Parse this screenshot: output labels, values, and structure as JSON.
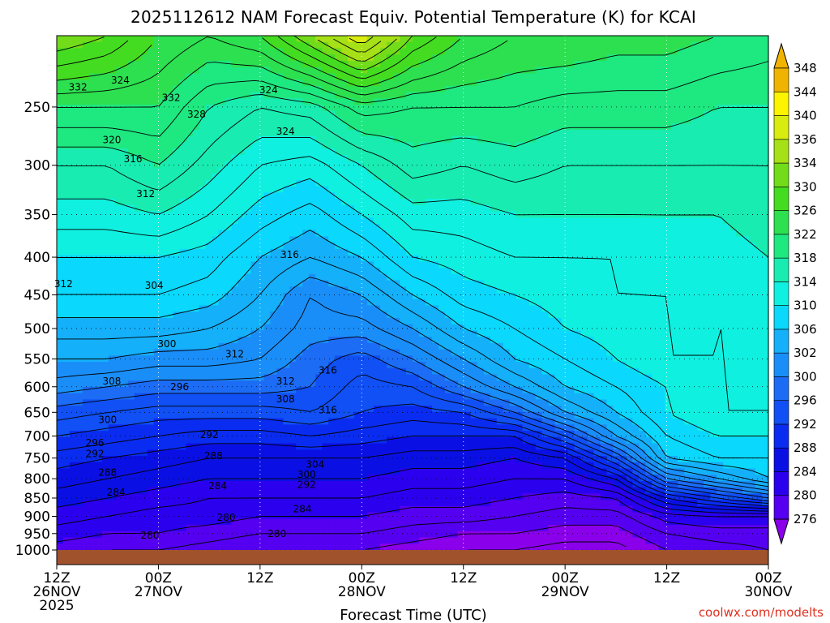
{
  "chart_data": {
    "type": "heatmap",
    "title": "2025112612 NAM Forecast Equiv. Potential Temperature (K) for KCAI",
    "xlabel": "Forecast Time (UTC)",
    "ylabel": "",
    "credit": "coolwx.com/modelts",
    "y_scale": "log",
    "y_inverted": true,
    "ylim": [
      1000,
      200
    ],
    "xlim_hours": [
      0,
      84
    ],
    "y_ticks": [
      250,
      300,
      350,
      400,
      450,
      500,
      550,
      600,
      650,
      700,
      750,
      800,
      850,
      900,
      950,
      1000
    ],
    "y_tick_labels": [
      "250",
      "300",
      "350",
      "400",
      "450",
      "500",
      "550",
      "600",
      "650",
      "700",
      "750",
      "800",
      "850",
      "900",
      "950",
      "1000"
    ],
    "x_ticks": [
      {
        "hour": 0,
        "line1": "12Z",
        "line2": "26NOV",
        "line3": "2025"
      },
      {
        "hour": 12,
        "line1": "00Z",
        "line2": "27NOV",
        "line3": ""
      },
      {
        "hour": 24,
        "line1": "12Z",
        "line2": "",
        "line3": ""
      },
      {
        "hour": 36,
        "line1": "00Z",
        "line2": "28NOV",
        "line3": ""
      },
      {
        "hour": 48,
        "line1": "12Z",
        "line2": "",
        "line3": ""
      },
      {
        "hour": 60,
        "line1": "00Z",
        "line2": "29NOV",
        "line3": ""
      },
      {
        "hour": 72,
        "line1": "12Z",
        "line2": "",
        "line3": ""
      },
      {
        "hour": 84,
        "line1": "00Z",
        "line2": "30NOV",
        "line3": ""
      }
    ],
    "colorbar": {
      "levels": [
        276,
        280,
        284,
        288,
        292,
        296,
        300,
        302,
        306,
        310,
        314,
        318,
        322,
        326,
        330,
        334,
        336,
        340,
        344,
        348
      ],
      "labels": [
        "276",
        "280",
        "284",
        "288",
        "292",
        "296",
        "300",
        "302",
        "306",
        "310",
        "314",
        "318",
        "322",
        "326",
        "330",
        "334",
        "336",
        "340",
        "344",
        "348"
      ],
      "colors": [
        "#8a00ea",
        "#5500f0",
        "#2a00ee",
        "#0a10e4",
        "#0a2cf0",
        "#1050f4",
        "#1c6cf6",
        "#1a8ef8",
        "#14b0fa",
        "#0ad8fc",
        "#10f0e0",
        "#18ecb0",
        "#1ee880",
        "#2ce050",
        "#44dc20",
        "#72dc1a",
        "#a6e016",
        "#d8ec10",
        "#fcf400",
        "#f0b400"
      ]
    },
    "grid": true,
    "pressure_levels_sampled": [
      1000,
      950,
      900,
      850,
      800,
      750,
      700,
      650,
      600,
      550,
      500,
      450,
      400,
      350,
      300,
      250,
      200
    ],
    "forecast_hours_sampled": [
      0,
      6,
      12,
      18,
      24,
      30,
      36,
      42,
      48,
      54,
      60,
      66,
      72,
      78,
      84
    ],
    "theta_e_K": [
      [
        283,
        282,
        282,
        281,
        280,
        280,
        280,
        279,
        278,
        278,
        277,
        277,
        280,
        281,
        282
      ],
      [
        285,
        284,
        284,
        283,
        282,
        282,
        282,
        281,
        280,
        280,
        279,
        279,
        282,
        283,
        283
      ],
      [
        287,
        286,
        285,
        285,
        284,
        284,
        284,
        283,
        283,
        282,
        281,
        281,
        285,
        286,
        286
      ],
      [
        289,
        288,
        287,
        286,
        286,
        286,
        286,
        285,
        285,
        284,
        283,
        284,
        292,
        296,
        300
      ],
      [
        291,
        290,
        289,
        288,
        288,
        288,
        288,
        287,
        287,
        286,
        286,
        290,
        302,
        306,
        310
      ],
      [
        293,
        292,
        291,
        290,
        290,
        290,
        290,
        289,
        289,
        288,
        290,
        298,
        310,
        312,
        312
      ],
      [
        296,
        295,
        294,
        293,
        293,
        294,
        293,
        292,
        292,
        292,
        298,
        306,
        312,
        314,
        314
      ],
      [
        299,
        298,
        297,
        297,
        297,
        298,
        296,
        295,
        296,
        300,
        306,
        310,
        314,
        316,
        316
      ],
      [
        303,
        302,
        301,
        301,
        301,
        300,
        297,
        298,
        302,
        306,
        310,
        312,
        314,
        316,
        316
      ],
      [
        306,
        306,
        305,
        305,
        304,
        301,
        299,
        302,
        306,
        310,
        312,
        314,
        316,
        316,
        316
      ],
      [
        309,
        309,
        309,
        308,
        306,
        303,
        303,
        306,
        310,
        312,
        314,
        315,
        316,
        316,
        316
      ],
      [
        312,
        312,
        312,
        311,
        308,
        304,
        306,
        310,
        313,
        314,
        315,
        316,
        316,
        317,
        317
      ],
      [
        314,
        314,
        314,
        313,
        310,
        308,
        310,
        314,
        315,
        316,
        316,
        316,
        317,
        317,
        318
      ],
      [
        317,
        317,
        318,
        316,
        313,
        311,
        314,
        317,
        317,
        318,
        318,
        318,
        318,
        318,
        319
      ],
      [
        320,
        320,
        322,
        319,
        316,
        315,
        318,
        321,
        320,
        321,
        320,
        320,
        320,
        320,
        320
      ],
      [
        326,
        326,
        326,
        322,
        320,
        321,
        325,
        324,
        324,
        324,
        323,
        323,
        323,
        322,
        322
      ],
      [
        336,
        334,
        330,
        328,
        330,
        336,
        342,
        334,
        330,
        328,
        328,
        327,
        327,
        326,
        325
      ]
    ],
    "contour_labels": [
      {
        "text": "332",
        "hour": 2.5,
        "p": 235
      },
      {
        "text": "324",
        "hour": 7.5,
        "p": 230
      },
      {
        "text": "332",
        "hour": 13.5,
        "p": 243
      },
      {
        "text": "328",
        "hour": 16.5,
        "p": 256
      },
      {
        "text": "324",
        "hour": 25.0,
        "p": 237
      },
      {
        "text": "324",
        "hour": 27.0,
        "p": 270
      },
      {
        "text": "320",
        "hour": 6.5,
        "p": 277
      },
      {
        "text": "316",
        "hour": 9.0,
        "p": 294
      },
      {
        "text": "312",
        "hour": 10.5,
        "p": 328
      },
      {
        "text": "304",
        "hour": 11.5,
        "p": 437
      },
      {
        "text": "300",
        "hour": 13.0,
        "p": 525
      },
      {
        "text": "296",
        "hour": 14.5,
        "p": 600
      },
      {
        "text": "292",
        "hour": 18.0,
        "p": 697
      },
      {
        "text": "288",
        "hour": 18.5,
        "p": 745
      },
      {
        "text": "284",
        "hour": 19.0,
        "p": 818
      },
      {
        "text": "280",
        "hour": 20.0,
        "p": 903
      },
      {
        "text": "280",
        "hour": 11.0,
        "p": 955
      },
      {
        "text": "316",
        "hour": 27.5,
        "p": 397
      },
      {
        "text": "312",
        "hour": 21.0,
        "p": 542
      },
      {
        "text": "312",
        "hour": 27.0,
        "p": 590
      },
      {
        "text": "308",
        "hour": 27.0,
        "p": 624
      },
      {
        "text": "304",
        "hour": 30.5,
        "p": 765
      },
      {
        "text": "300",
        "hour": 29.5,
        "p": 790
      },
      {
        "text": "292",
        "hour": 29.5,
        "p": 815
      },
      {
        "text": "284",
        "hour": 29.0,
        "p": 880
      },
      {
        "text": "280",
        "hour": 26.0,
        "p": 950
      },
      {
        "text": "316",
        "hour": 32.0,
        "p": 570
      },
      {
        "text": "316",
        "hour": 32.0,
        "p": 645
      },
      {
        "text": "312",
        "hour": 0.8,
        "p": 435
      },
      {
        "text": "308",
        "hour": 6.5,
        "p": 590
      },
      {
        "text": "300",
        "hour": 6.0,
        "p": 665
      },
      {
        "text": "296",
        "hour": 4.5,
        "p": 715
      },
      {
        "text": "292",
        "hour": 4.5,
        "p": 740
      },
      {
        "text": "288",
        "hour": 6.0,
        "p": 785
      },
      {
        "text": "284",
        "hour": 7.0,
        "p": 835
      }
    ]
  }
}
